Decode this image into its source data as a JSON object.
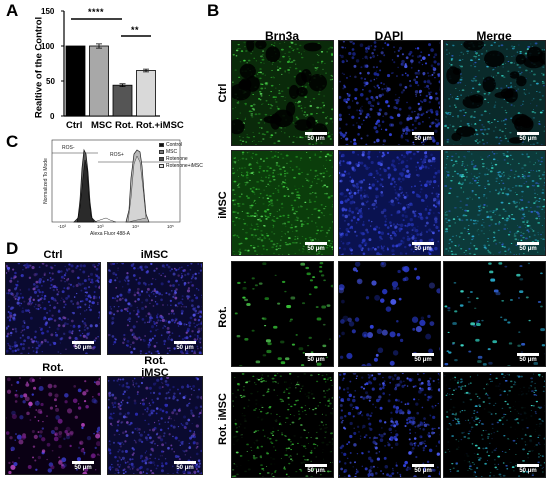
{
  "panel_labels": {
    "a": "A",
    "b": "B",
    "c": "C",
    "d": "D"
  },
  "panel_a": {
    "ylabel": "Realtive of the Control",
    "y_ticks": [
      "0",
      "50",
      "100",
      "150"
    ],
    "significance": [
      {
        "label": "****",
        "between": [
          "Ctrl",
          "Rot."
        ]
      },
      {
        "label": "**",
        "between": [
          "Rot.",
          "Rot.+iMSC"
        ]
      }
    ]
  },
  "chart_data": {
    "type": "bar",
    "categories": [
      "Ctrl",
      "MSC",
      "Rot.",
      "Rot.+iMSC"
    ],
    "values": [
      100,
      100,
      44,
      65
    ],
    "errors": [
      0,
      3,
      2,
      2
    ],
    "bar_colors": [
      "#000000",
      "#a8a8a8",
      "#555555",
      "#d9d9d9"
    ],
    "xlabel": "",
    "ylabel": "Realtive of the Control",
    "ylim": [
      0,
      150
    ]
  },
  "panel_b": {
    "columns": [
      "Brn3a",
      "DAPI",
      "Merge"
    ],
    "rows": [
      "Ctrl",
      "iMSC",
      "Rot.",
      "Rot. iMSC"
    ],
    "scale_label": "50 μm",
    "colors": {
      "brn3a": "#2fbf2f",
      "dapi": "#2a3acc",
      "merge": "#2ec8b8"
    }
  },
  "panel_c": {
    "x_axis_label": "Alexa Fluor 488-A",
    "y_axis_label": "Normalized To Mode",
    "x_ticks": [
      "-10³",
      "0",
      "10³",
      "10⁴",
      "10⁵"
    ],
    "gates": [
      "ROS-",
      "ROS+"
    ],
    "legend": [
      "Control",
      "MSC",
      "Rotenone",
      "Rotenone+iMSC"
    ],
    "legend_colors": [
      "#111111",
      "#7a7a7a",
      "#4a4a4a",
      "#e0e0e0"
    ]
  },
  "panel_d": {
    "labels": [
      "Ctrl",
      "iMSC",
      "Rot.",
      "Rot. iMSC"
    ],
    "scale_label": "50 μm",
    "colors": {
      "nuclei": "#3a3ac8",
      "signal": "#a23aa8"
    }
  }
}
